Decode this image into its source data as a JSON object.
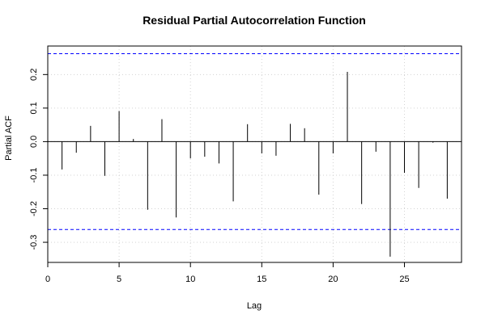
{
  "chart_data": {
    "type": "bar",
    "title": "Residual Partial Autocorrelation Function",
    "xlabel": "Lag",
    "ylabel": "Partial ACF",
    "xlim": [
      0,
      29
    ],
    "ylim": [
      -0.36,
      0.285
    ],
    "xticks": [
      0,
      5,
      10,
      15,
      20,
      25
    ],
    "yticks": [
      -0.3,
      -0.2,
      -0.1,
      0.0,
      0.1,
      0.2
    ],
    "x": [
      1,
      2,
      3,
      4,
      5,
      6,
      7,
      8,
      9,
      10,
      11,
      12,
      13,
      14,
      15,
      16,
      17,
      18,
      19,
      20,
      21,
      22,
      23,
      24,
      25,
      26,
      27,
      28
    ],
    "values": [
      -0.083,
      -0.033,
      0.047,
      -0.102,
      0.091,
      0.008,
      -0.203,
      0.067,
      -0.226,
      -0.05,
      -0.045,
      -0.065,
      -0.178,
      0.052,
      -0.035,
      -0.042,
      0.053,
      0.04,
      -0.158,
      -0.035,
      0.208,
      -0.186,
      -0.03,
      -0.343,
      -0.093,
      -0.138,
      -0.003,
      -0.17
    ],
    "confidence_bounds": [
      0.262,
      -0.262
    ],
    "grid": true,
    "colors": {
      "bars": "#000000",
      "bounds": "#0000ff",
      "grid": "#d3d3d3",
      "frame": "#000000"
    }
  }
}
